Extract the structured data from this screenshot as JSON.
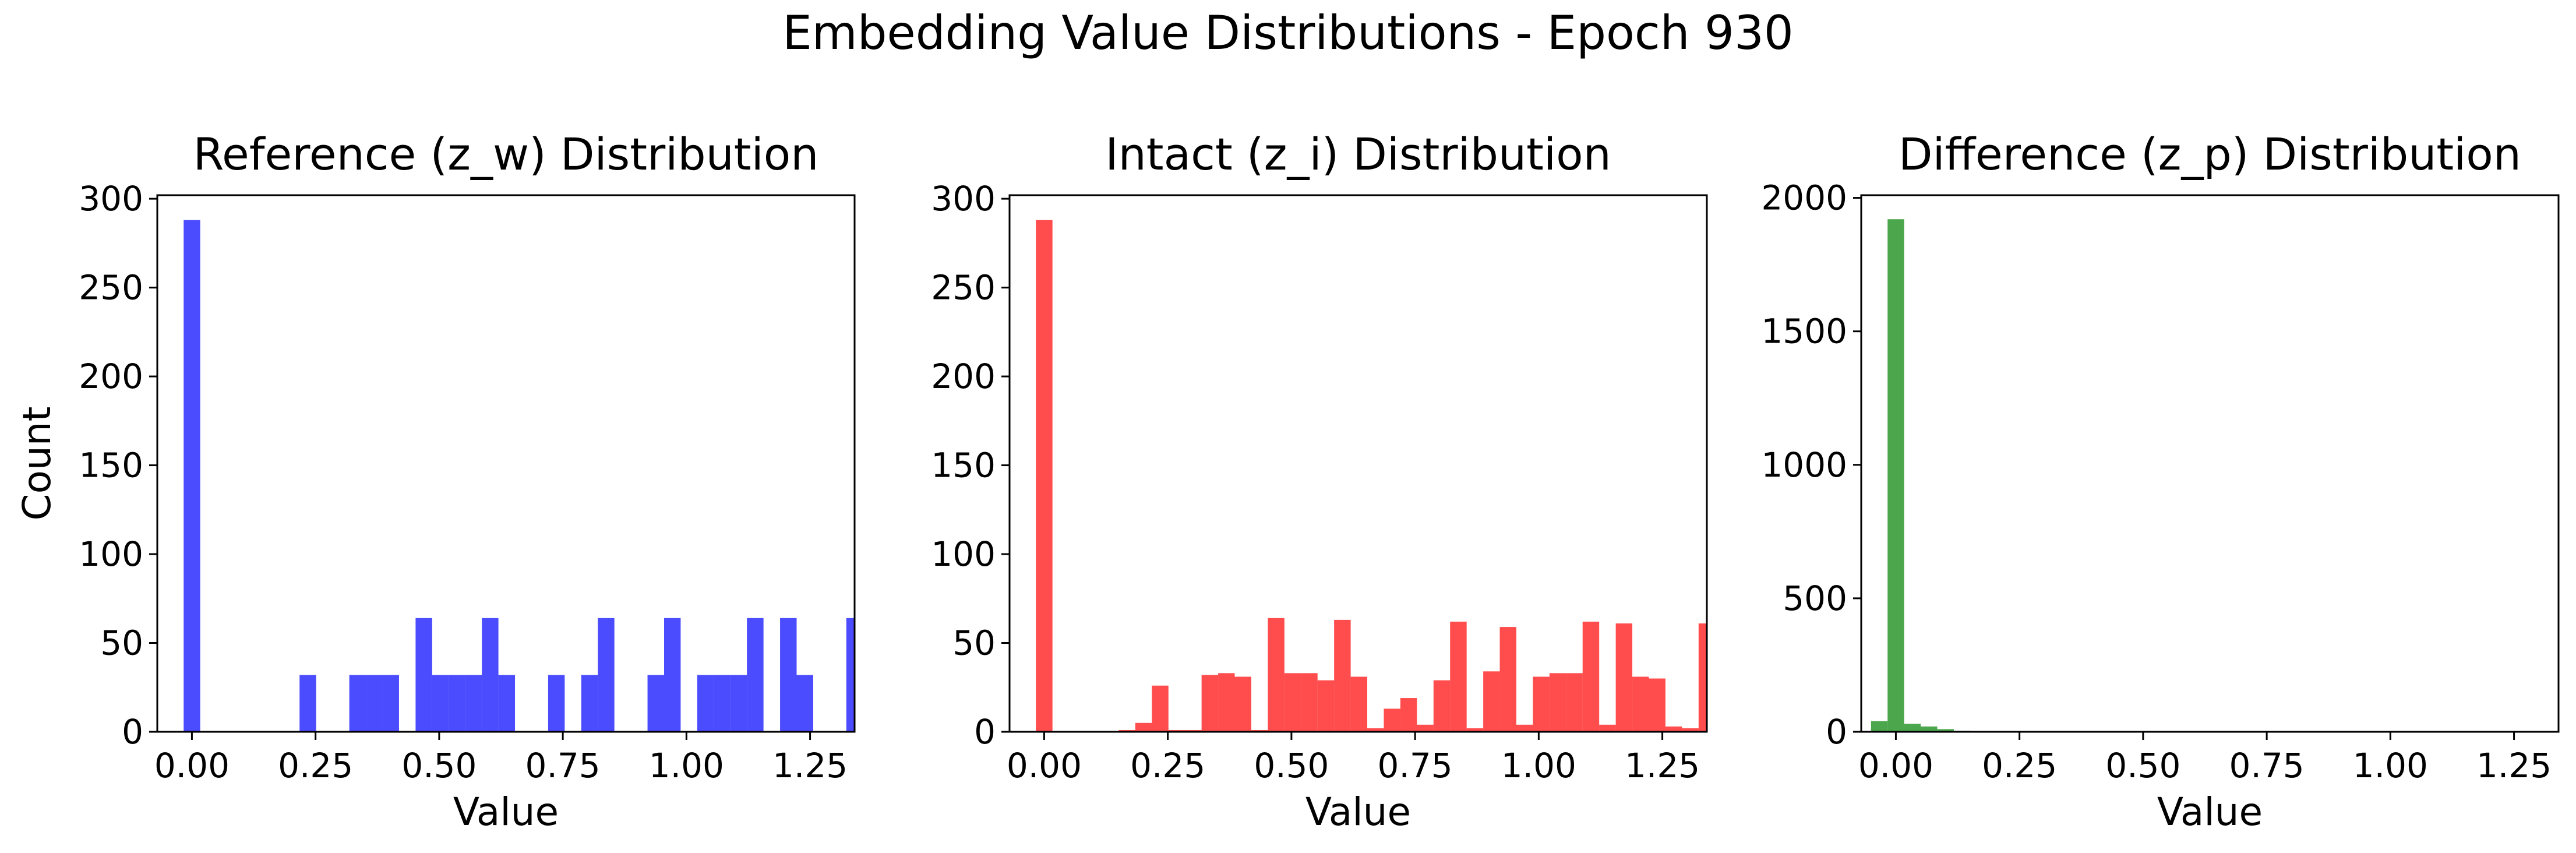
{
  "figure": {
    "title": "Embedding Value Distributions - Epoch 930"
  },
  "chart_data": [
    {
      "type": "bar",
      "title": "Reference (z_w) Distribution",
      "xlabel": "Value",
      "ylabel": "Count",
      "color": "#0000ff",
      "bin_width": 0.0335,
      "xlim": [
        -0.07,
        1.34
      ],
      "ylim": [
        0,
        302
      ],
      "xticks": [
        "0.00",
        "0.25",
        "0.50",
        "0.75",
        "1.00",
        "1.25"
      ],
      "xtick_values": [
        0,
        0.25,
        0.5,
        0.75,
        1.0,
        1.25
      ],
      "yticks": [
        "0",
        "50",
        "100",
        "150",
        "200",
        "250",
        "300"
      ],
      "ytick_values": [
        0,
        50,
        100,
        150,
        200,
        250,
        300
      ],
      "bins": [
        [
          -0.0167,
          288
        ],
        [
          0.2177,
          32
        ],
        [
          0.3183,
          32
        ],
        [
          0.3518,
          32
        ],
        [
          0.3853,
          32
        ],
        [
          0.4523,
          64
        ],
        [
          0.4858,
          32
        ],
        [
          0.5193,
          32
        ],
        [
          0.5528,
          32
        ],
        [
          0.5863,
          64
        ],
        [
          0.6198,
          32
        ],
        [
          0.7203,
          32
        ],
        [
          0.7873,
          32
        ],
        [
          0.8208,
          64
        ],
        [
          0.9213,
          32
        ],
        [
          0.9548,
          64
        ],
        [
          1.0218,
          32
        ],
        [
          1.0553,
          32
        ],
        [
          1.0888,
          32
        ],
        [
          1.1223,
          64
        ],
        [
          1.1893,
          64
        ],
        [
          1.2228,
          32
        ],
        [
          1.3233,
          64
        ]
      ]
    },
    {
      "type": "bar",
      "title": "Intact (z_i) Distribution",
      "xlabel": "Value",
      "ylabel": "",
      "color": "#ff0000",
      "bin_width": 0.0335,
      "xlim": [
        -0.07,
        1.34
      ],
      "ylim": [
        0,
        302
      ],
      "xticks": [
        "0.00",
        "0.25",
        "0.50",
        "0.75",
        "1.00",
        "1.25"
      ],
      "xtick_values": [
        0,
        0.25,
        0.5,
        0.75,
        1.0,
        1.25
      ],
      "yticks": [
        "0",
        "50",
        "100",
        "150",
        "200",
        "250",
        "300"
      ],
      "ytick_values": [
        0,
        50,
        100,
        150,
        200,
        250,
        300
      ],
      "bins": [
        [
          -0.0167,
          288
        ],
        [
          0.1508,
          1
        ],
        [
          0.1843,
          5
        ],
        [
          0.2178,
          26
        ],
        [
          0.2513,
          1
        ],
        [
          0.2848,
          1
        ],
        [
          0.3183,
          32
        ],
        [
          0.3518,
          33
        ],
        [
          0.3853,
          31
        ],
        [
          0.4188,
          1
        ],
        [
          0.4523,
          64
        ],
        [
          0.4858,
          33
        ],
        [
          0.5193,
          33
        ],
        [
          0.5528,
          29
        ],
        [
          0.5863,
          63
        ],
        [
          0.6198,
          31
        ],
        [
          0.6533,
          2
        ],
        [
          0.6868,
          13
        ],
        [
          0.7203,
          19
        ],
        [
          0.7538,
          4
        ],
        [
          0.7873,
          29
        ],
        [
          0.8208,
          62
        ],
        [
          0.8543,
          2
        ],
        [
          0.8878,
          34
        ],
        [
          0.9213,
          59
        ],
        [
          0.9548,
          4
        ],
        [
          0.9883,
          31
        ],
        [
          1.0218,
          33
        ],
        [
          1.0553,
          33
        ],
        [
          1.0888,
          62
        ],
        [
          1.1223,
          4
        ],
        [
          1.1558,
          61
        ],
        [
          1.1893,
          31
        ],
        [
          1.2228,
          30
        ],
        [
          1.2563,
          3
        ],
        [
          1.2898,
          2
        ],
        [
          1.3233,
          61
        ]
      ]
    },
    {
      "type": "bar",
      "title": "Difference (z_p) Distribution",
      "xlabel": "Value",
      "ylabel": "",
      "color": "#008000",
      "bin_width": 0.0335,
      "xlim": [
        -0.07,
        1.34
      ],
      "ylim": [
        0,
        2010
      ],
      "xticks": [
        "0.00",
        "0.25",
        "0.50",
        "0.75",
        "1.00",
        "1.25"
      ],
      "xtick_values": [
        0,
        0.25,
        0.5,
        0.75,
        1.0,
        1.25
      ],
      "yticks": [
        "0",
        "500",
        "1000",
        "1500",
        "2000"
      ],
      "ytick_values": [
        0,
        500,
        1000,
        1500,
        2000
      ],
      "bins": [
        [
          -0.0502,
          40
        ],
        [
          -0.0167,
          1920
        ],
        [
          0.0168,
          30
        ],
        [
          0.0503,
          20
        ],
        [
          0.0838,
          10
        ],
        [
          0.1173,
          4
        ],
        [
          0.1508,
          2
        ]
      ]
    }
  ]
}
